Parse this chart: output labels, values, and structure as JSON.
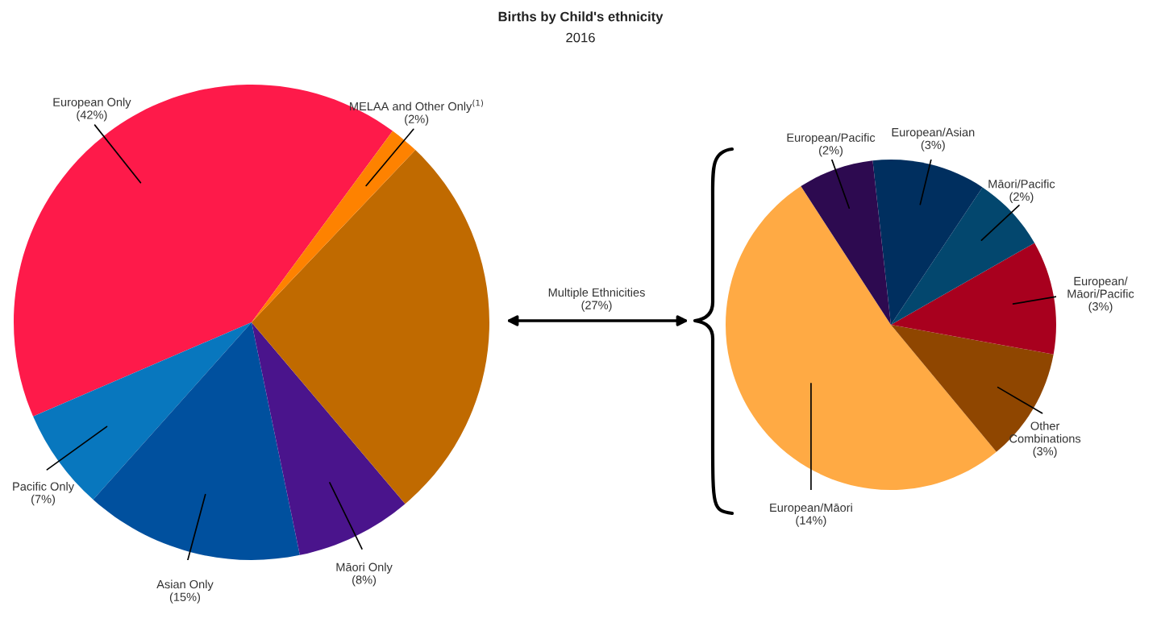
{
  "chart_data": [
    {
      "type": "pie",
      "title": "Births by Child's ethnicity",
      "subtitle": "2016",
      "categories": [
        "European Only",
        "Pacific Only",
        "Asian Only",
        "Māori Only",
        null,
        "MELAA and Other Only$^{(1)}$"
      ],
      "values": [
        42,
        7,
        15,
        8,
        27,
        2
      ],
      "value_labels": [
        "(42%)",
        "(7%)",
        "(15%)",
        "(8%)",
        null,
        "(2%)"
      ],
      "colors": [
        "#fe1a4a",
        "#0877be",
        "#00509e",
        "#4a148c",
        "#c06a00",
        "#fe8200"
      ],
      "annotations": [
        "Multiple Ethnicities\n(27%)"
      ]
    },
    {
      "type": "pie",
      "categories": [
        "European/Māori",
        "Other\nCombinations",
        "European/\nMāori/Pacific",
        "Māori/Pacific",
        "European/Asian",
        "European/Pacific"
      ],
      "values": [
        14,
        3,
        3,
        2,
        3,
        2
      ],
      "value_labels": [
        "(14%)",
        "(3%)",
        "(3%)",
        "(2%)",
        "(3%)",
        "(2%)"
      ],
      "colors": [
        "#ffaa44",
        "#8f4600",
        "#a8001e",
        "#03476e",
        "#002f5f",
        "#2d0a50"
      ]
    }
  ]
}
